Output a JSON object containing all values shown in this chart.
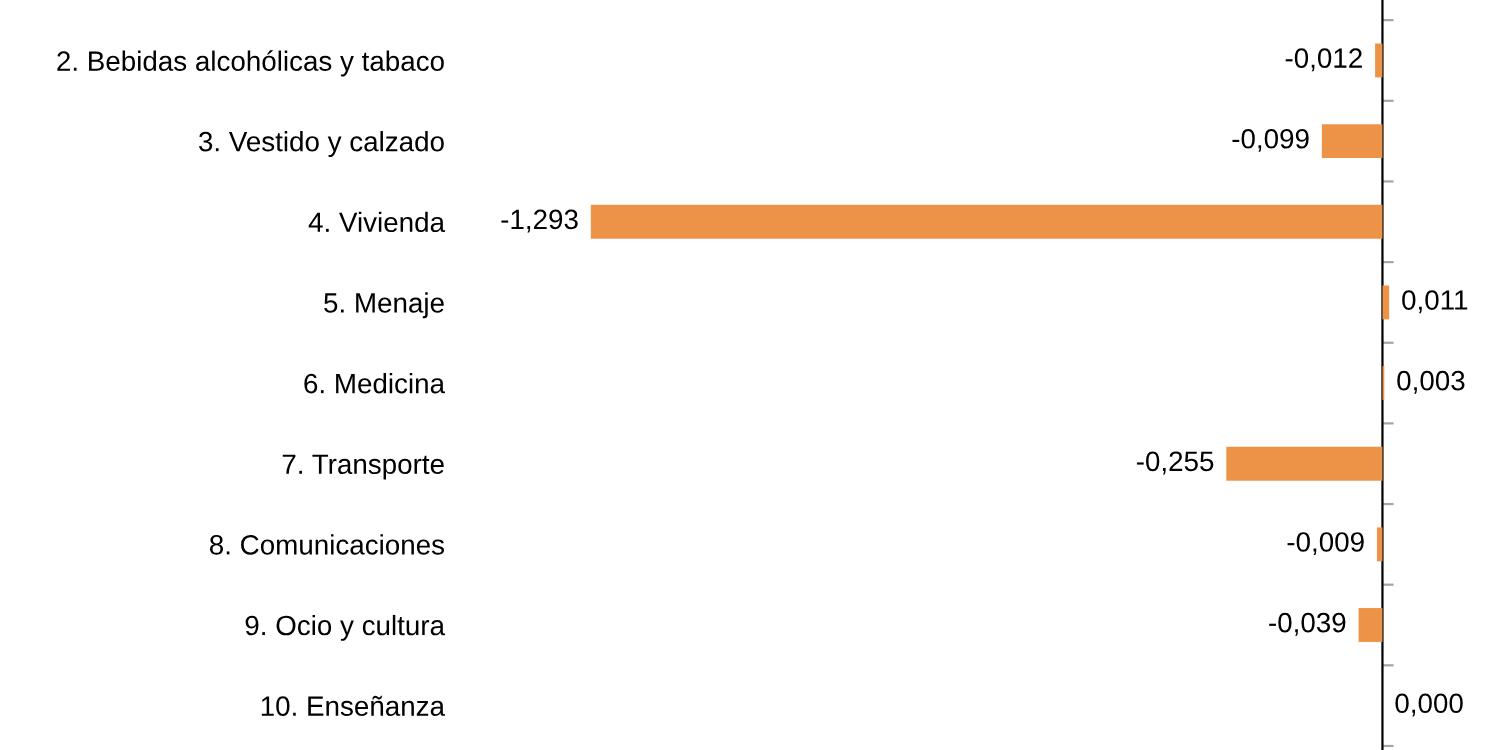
{
  "chart_data": {
    "type": "bar",
    "orientation": "horizontal",
    "categories": [
      "2. Bebidas alcohólicas y tabaco",
      "3. Vestido y calzado",
      "4. Vivienda",
      "5. Menaje",
      "6. Medicina",
      "7. Transporte",
      "8. Comunicaciones",
      "9. Ocio y cultura",
      "10. Enseñanza"
    ],
    "values": [
      -0.012,
      -0.099,
      -1.293,
      0.011,
      0.003,
      -0.255,
      -0.009,
      -0.039,
      0.0
    ],
    "value_labels": [
      "-0,012",
      "-0,099",
      "-1,293",
      "0,011",
      "0,003",
      "-0,255",
      "-0,009",
      "-0,039",
      "0,000"
    ],
    "color": "#ed9348",
    "grid": false,
    "legend": false
  }
}
